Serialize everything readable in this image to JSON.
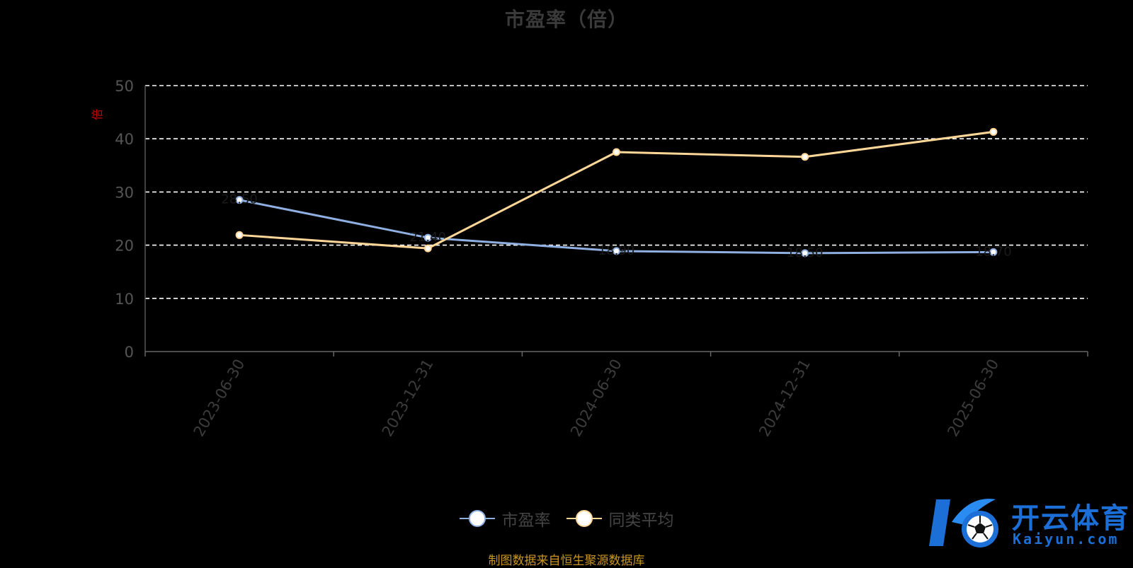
{
  "chart_data": {
    "type": "line",
    "title": "市盈率（倍）",
    "ylabel": "倍",
    "xlabel": "",
    "categories": [
      "2023-06-30",
      "2023-12-31",
      "2024-06-30",
      "2024-12-31",
      "2025-06-30"
    ],
    "series": [
      {
        "name": "市盈率",
        "values": [
          28.5,
          21.4,
          18.9,
          18.5,
          18.7
        ],
        "color": "#8fafe0"
      },
      {
        "name": "同类平均",
        "values": [
          21.9,
          19.4,
          37.5,
          36.6,
          41.3
        ],
        "color": "#ffd799"
      }
    ],
    "ylim": [
      0,
      50
    ],
    "yticks": [
      0,
      10,
      20,
      30,
      40,
      50
    ],
    "grid": true,
    "legend_position": "bottom-center"
  },
  "source_note": "制图数据来自恒生聚源数据库",
  "watermark": {
    "cn": "开云体育",
    "en": "Kaiyun.com"
  },
  "colors": {
    "background": "#000000",
    "axis": "#666666",
    "grid": "#ffffff",
    "source": "#c8961e",
    "ylabel": "#cc0000"
  }
}
